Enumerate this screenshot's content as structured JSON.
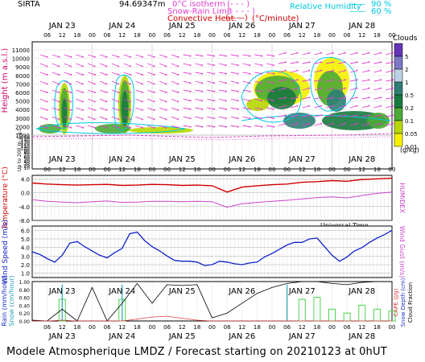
{
  "header": {
    "station": "SIRTA",
    "elevation": "94.69347m",
    "legend_isotherm": "0°C isotherm",
    "legend_snow_rain": "Snow-Rain Limit",
    "legend_convective": "Convective Heat.",
    "legend_convective_unit": "(°C/minute)",
    "legend_rh_label": "Relative Humidity",
    "legend_rh_90": "90 %",
    "legend_rh_60": "60 %"
  },
  "days": [
    "JAN 23",
    "JAN 24",
    "JAN 25",
    "JAN 26",
    "JAN 27",
    "JAN 28"
  ],
  "hour_ticks": [
    "06",
    "12",
    "18",
    "00"
  ],
  "colors": {
    "clouds": [
      "#f5f000",
      "#b7d700",
      "#4caa35",
      "#197a3f",
      "#2f7f75",
      "#bcd1e6",
      "#7b79c8",
      "#6435b8"
    ],
    "isotherm": "#e23fcf",
    "convective": "#d40000",
    "humidity": "#00c8e0",
    "temperature": "#d10000",
    "humidex": "#cc44cc",
    "wind": "#1020c8",
    "rain": "#1a2fc8",
    "snow": "#2aa4b4",
    "cape": "#e04040",
    "snow_depth": "#2030c0",
    "cloud_fraction": "#000000",
    "conv_bars": "#4fd24f"
  },
  "cloud_legend": {
    "title": "Clouds",
    "levels": [
      "5",
      "2",
      "1",
      "0.5",
      "0.2",
      "0.1",
      "0.05",
      "0.01"
    ],
    "unit": "(g/kg)"
  },
  "panel1_axis_label": "Height (m a.s.l.)",
  "panel1_low_label": "Up to 200 m a.g.l.",
  "timeline_label": "Universal Time",
  "footer": "Modele Atmospherique LMDZ / Forecast starting on 20210123 at 0hUT",
  "chart_data": [
    {
      "type": "heatmap",
      "name": "clouds",
      "ylabel": "Height (m a.s.l.)",
      "yticks_upper": [
        1000,
        2000,
        3000,
        4000,
        5000,
        6000,
        7000,
        8000,
        9000,
        10000,
        11000
      ],
      "yticks_lower": [
        10,
        20,
        30,
        40,
        50,
        60,
        70,
        80,
        90,
        100,
        110,
        120,
        130,
        140,
        150
      ]
    },
    {
      "type": "line",
      "name": "temperature",
      "ylabel": "Temperature (°C)",
      "y2label": "HUMIDEX",
      "yticks": [
        "-8.0",
        "-4.0",
        "0.0",
        "4.0"
      ],
      "ylim": [
        -8,
        5
      ],
      "x_hours": [
        0,
        6,
        12,
        18,
        24,
        30,
        36,
        42,
        48,
        54,
        60,
        66,
        72,
        78,
        84,
        90,
        96,
        102,
        108,
        114,
        120,
        126,
        132,
        138,
        144
      ],
      "temperature": [
        2.8,
        2.5,
        2.3,
        2.2,
        2.3,
        2.4,
        2.1,
        2.2,
        2.4,
        2.3,
        2.1,
        2.2,
        2.0,
        0.2,
        1.6,
        2.0,
        2.3,
        2.5,
        3.0,
        3.2,
        3.5,
        3.3,
        3.8,
        4.0,
        4.2
      ],
      "humidex": [
        -2.0,
        -2.5,
        -2.7,
        -2.9,
        -2.6,
        -2.4,
        -2.8,
        -2.7,
        -2.5,
        -2.5,
        -2.6,
        -2.5,
        -2.6,
        -4.2,
        -3.2,
        -2.8,
        -2.5,
        -2.2,
        -1.8,
        -1.4,
        -1.2,
        -1.5,
        -0.8,
        -0.2,
        0.2
      ]
    },
    {
      "type": "line",
      "name": "wind",
      "ylabel": "Wind Speed (m/s)",
      "y2label": "Wind Gust (m/s)",
      "yticks": [
        "1.0",
        "2.0",
        "3.0",
        "4.0",
        "5.0",
        "6.0"
      ],
      "ylim": [
        0.5,
        6.5
      ],
      "x_hours": [
        0,
        3,
        6,
        9,
        12,
        15,
        18,
        21,
        24,
        27,
        30,
        33,
        36,
        39,
        42,
        45,
        48,
        51,
        54,
        57,
        60,
        63,
        66,
        69,
        72,
        75,
        78,
        81,
        84,
        87,
        90,
        93,
        96,
        99,
        102,
        105,
        108,
        111,
        114,
        117,
        120,
        123,
        126,
        129,
        132,
        135,
        138,
        141,
        144
      ],
      "speed": [
        3.5,
        3.2,
        2.7,
        2.3,
        3.1,
        4.5,
        4.7,
        4.1,
        3.6,
        3.1,
        2.8,
        3.4,
        3.9,
        5.6,
        5.8,
        4.8,
        4.1,
        3.6,
        3.0,
        2.5,
        2.4,
        2.4,
        2.3,
        1.9,
        2.0,
        2.4,
        2.3,
        2.1,
        2.0,
        2.2,
        2.3,
        2.9,
        3.3,
        3.8,
        4.3,
        4.6,
        4.6,
        5.0,
        5.1,
        4.1,
        3.1,
        2.4,
        2.9,
        3.6,
        4.0,
        4.6,
        5.1,
        5.5,
        6.0
      ]
    },
    {
      "type": "bar",
      "name": "precipitation",
      "ylabel": "Rain (mm/hour)",
      "ylabel2": "Snow (cm/hour)",
      "y2label": "CAPE (J/g)",
      "y3label": "Snow Depth (cm)",
      "y4label": "Cloud Fraction",
      "yticks": [
        "0.00",
        "0.20",
        "0.40",
        "0.60",
        "0.80",
        "1.00"
      ],
      "ylim": [
        0,
        1.0
      ],
      "x_hours": [
        0,
        6,
        12,
        18,
        24,
        30,
        36,
        42,
        48,
        54,
        60,
        66,
        72,
        78,
        84,
        90,
        96,
        102,
        108,
        114,
        120,
        126,
        132,
        138,
        144
      ],
      "cloud_fraction": [
        0.02,
        0.0,
        0.3,
        0.0,
        0.85,
        0.0,
        0.45,
        0.95,
        0.45,
        0.92,
        0.9,
        0.92,
        0.08,
        0.2,
        0.45,
        0.7,
        0.85,
        0.95,
        1.0,
        1.0,
        0.95,
        0.92,
        0.98,
        1.0,
        1.0
      ],
      "cape": [
        0.0,
        0.0,
        0.02,
        0.0,
        0.0,
        0.0,
        0.0,
        0.05,
        0.1,
        0.12,
        0.07,
        0.02,
        0.0,
        0.0,
        0.0,
        0.0,
        0.0,
        0.0,
        0.0,
        0.0,
        0.0,
        0.0,
        0.0,
        0.0,
        0.0
      ],
      "convective": [
        0.0,
        0.0,
        0.55,
        0.0,
        0.0,
        0.0,
        0.55,
        0.0,
        0.0,
        0.0,
        0.0,
        0.0,
        0.0,
        0.0,
        0.0,
        0.0,
        0.0,
        0.0,
        0.55,
        0.6,
        0.3,
        0.2,
        0.4,
        0.3,
        0.25
      ]
    }
  ]
}
